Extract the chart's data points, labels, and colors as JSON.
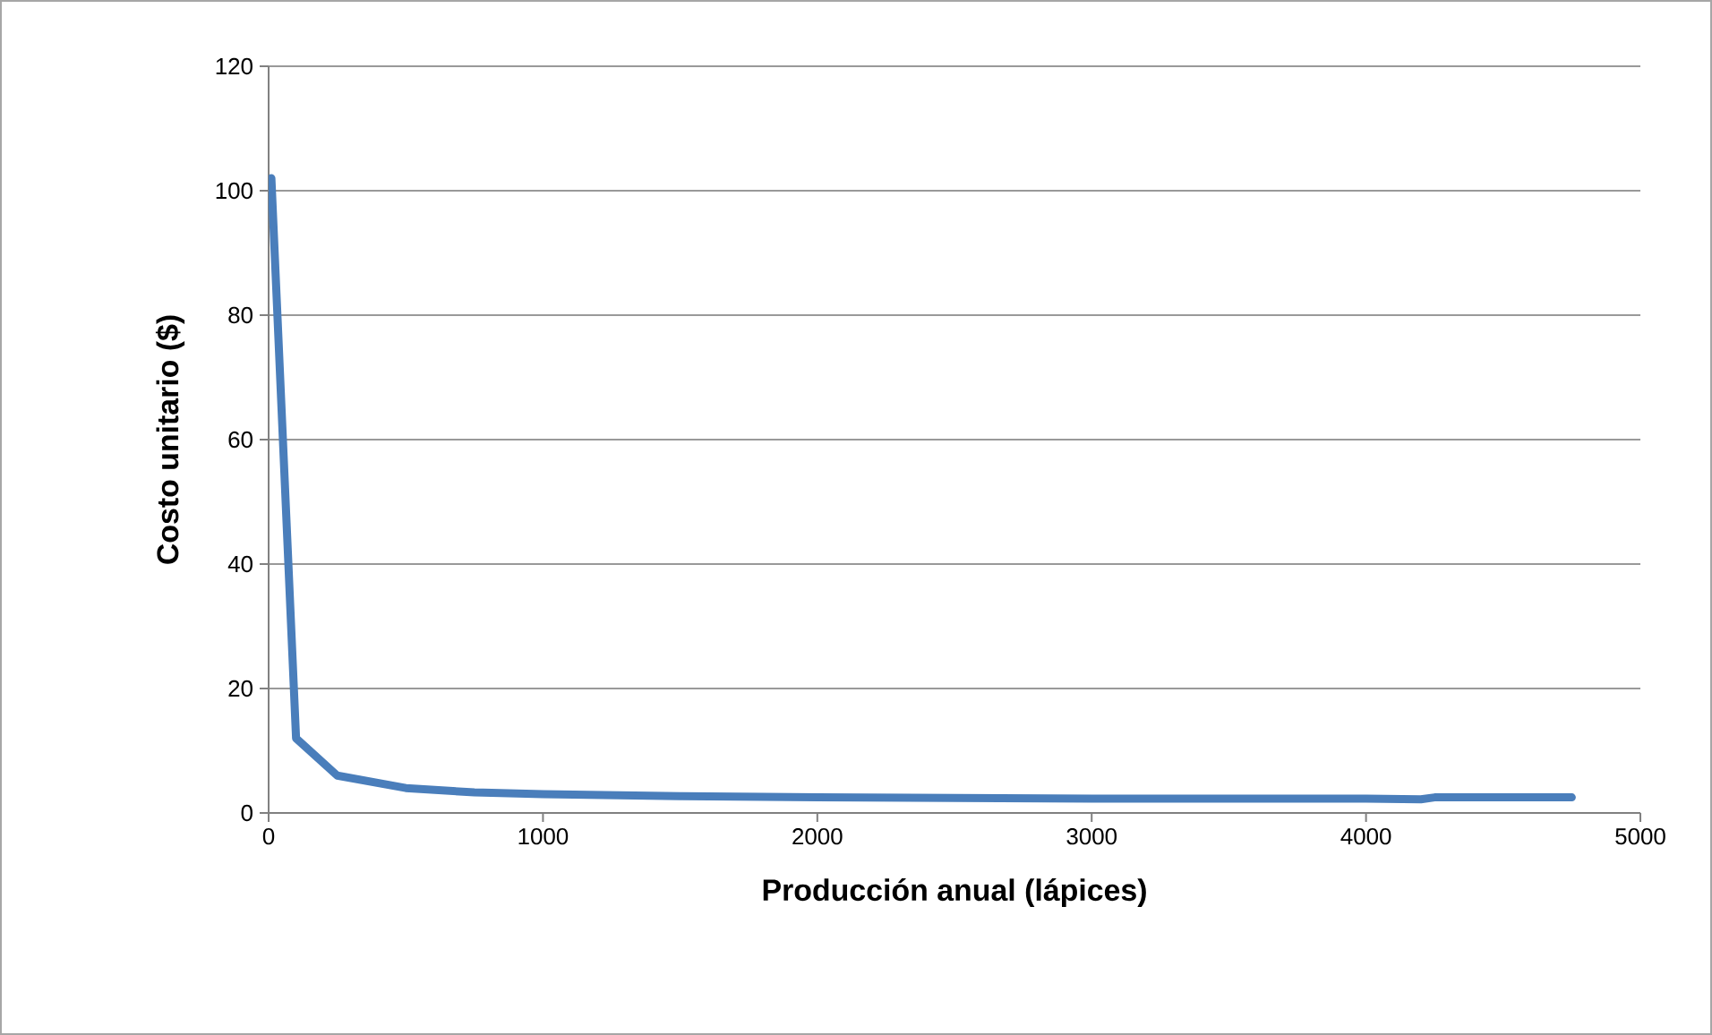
{
  "chart_data": {
    "type": "line",
    "xlabel": "Producción anual (lápices)",
    "ylabel": "Costo unitario ($)",
    "x": [
      10,
      100,
      250,
      500,
      750,
      1000,
      1500,
      2000,
      2500,
      3000,
      3500,
      4000,
      4200,
      4250,
      4500,
      4750
    ],
    "series": [
      {
        "color": "#4a7ebb",
        "values": [
          102,
          12,
          6,
          4,
          3.3,
          3,
          2.7,
          2.5,
          2.4,
          2.3,
          2.3,
          2.3,
          2.2,
          2.5,
          2.5,
          2.5
        ]
      }
    ],
    "xlim": [
      0,
      5000
    ],
    "xticks": [
      0,
      1000,
      2000,
      3000,
      4000,
      5000
    ],
    "ylim": [
      0,
      120
    ],
    "yticks": [
      0,
      20,
      40,
      60,
      80,
      100,
      120
    ],
    "grid": "y",
    "marker": "none",
    "line_style": "solid"
  }
}
